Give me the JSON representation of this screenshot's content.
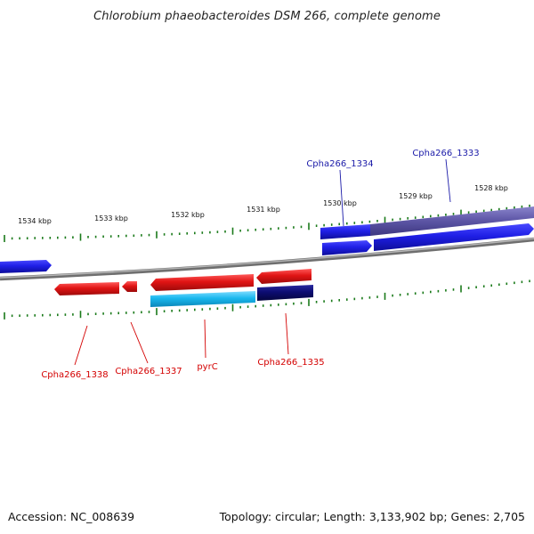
{
  "title": "Chlorobium phaeobacteroides DSM 266, complete genome",
  "footer": {
    "accession": "Accession: NC_008639",
    "topology": "Topology: circular; Length: 3,133,902 bp; Genes: 2,705"
  },
  "colors": {
    "background": "#ffffff",
    "backbone": "#8a8a8a",
    "tick": "#1a7a1a",
    "forward_label": "#1a1aa8",
    "reverse_label": "#d40000",
    "gene_blue": "#1f1fe6",
    "gene_slate": "#5f58a8",
    "gene_red": "#e01414",
    "gene_cyan": "#19b8ee",
    "gene_navy": "#0c0c72"
  },
  "map": {
    "tick_labels": [
      "1534 kbp",
      "1533 kbp",
      "1532 kbp",
      "1531 kbp",
      "1530 kbp",
      "1529 kbp",
      "1528 kbp"
    ],
    "forward_gene_labels": [
      "Cpha266_1334",
      "Cpha266_1333"
    ],
    "reverse_gene_labels": [
      "Cpha266_1338",
      "Cpha266_1337",
      "pyrC",
      "Cpha266_1335"
    ]
  }
}
